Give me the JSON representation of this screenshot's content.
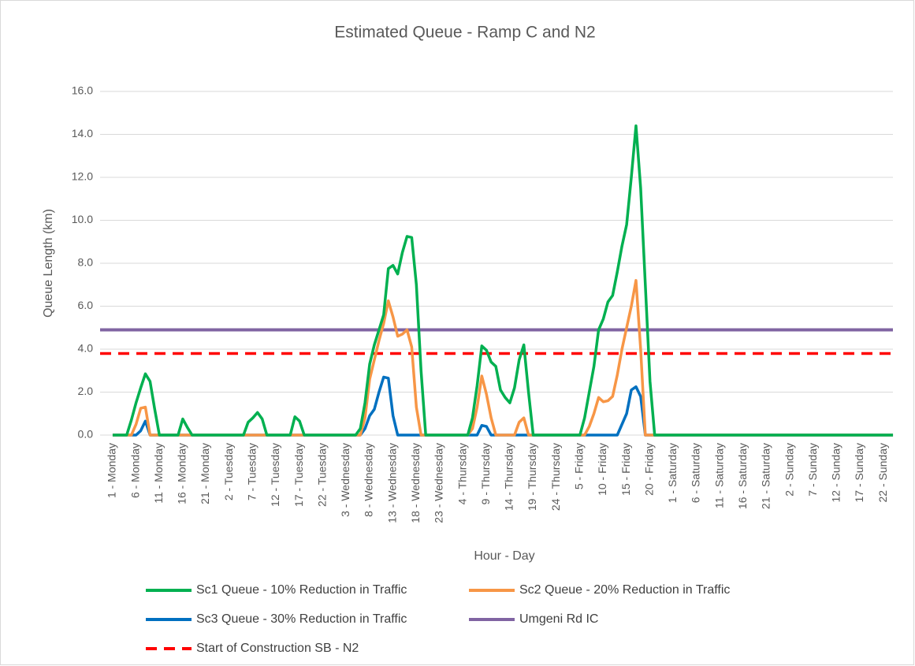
{
  "chart_data": {
    "type": "line",
    "title": "Estimated Queue - Ramp C and N2",
    "x_label": "Hour - Day",
    "y_label": "Queue Length (km)",
    "ylim": [
      0,
      16
    ],
    "yticks": [
      {
        "value": 0,
        "label": "0.0"
      },
      {
        "value": 2,
        "label": "2.0"
      },
      {
        "value": 4,
        "label": "4.0"
      },
      {
        "value": 6,
        "label": "6.0"
      },
      {
        "value": 8,
        "label": "8.0"
      },
      {
        "value": 10,
        "label": "10.0"
      },
      {
        "value": 12,
        "label": "12.0"
      },
      {
        "value": 14,
        "label": "14.0"
      },
      {
        "value": 16,
        "label": "16.0"
      }
    ],
    "grid": true,
    "legend": "bottom",
    "categories": [
      "1 - Monday",
      null,
      null,
      null,
      null,
      "6 - Monday",
      null,
      null,
      null,
      null,
      "11 - Monday",
      null,
      null,
      null,
      null,
      "16 - Monday",
      null,
      null,
      null,
      null,
      "21 - Monday",
      null,
      null,
      null,
      null,
      "2 - Tuesday",
      null,
      null,
      null,
      null,
      "7 - Tuesday",
      null,
      null,
      null,
      null,
      "12 - Tuesday",
      null,
      null,
      null,
      null,
      "17 - Tuesday",
      null,
      null,
      null,
      null,
      "22 - Tuesday",
      null,
      null,
      null,
      null,
      "3 - Wednesday",
      null,
      null,
      null,
      null,
      "8 - Wednesday",
      null,
      null,
      null,
      null,
      "13 - Wednesday",
      null,
      null,
      null,
      null,
      "18 - Wednesday",
      null,
      null,
      null,
      null,
      "23 - Wednesday",
      null,
      null,
      null,
      null,
      "4 - Thursday",
      null,
      null,
      null,
      null,
      "9 - Thursday",
      null,
      null,
      null,
      null,
      "14 - Thursday",
      null,
      null,
      null,
      null,
      "19 - Thursday",
      null,
      null,
      null,
      null,
      "24 - Thursday",
      null,
      null,
      null,
      null,
      "5 - Friday",
      null,
      null,
      null,
      null,
      "10 - Friday",
      null,
      null,
      null,
      null,
      "15 - Friday",
      null,
      null,
      null,
      null,
      "20 - Friday",
      null,
      null,
      null,
      null,
      "1 - Saturday",
      null,
      null,
      null,
      null,
      "6 - Saturday",
      null,
      null,
      null,
      null,
      "11 - Saturday",
      null,
      null,
      null,
      null,
      "16 - Saturday",
      null,
      null,
      null,
      null,
      "21 - Saturday",
      null,
      null,
      null,
      null,
      "2 - Sunday",
      null,
      null,
      null,
      null,
      "7 - Sunday",
      null,
      null,
      null,
      null,
      "12 - Sunday",
      null,
      null,
      null,
      null,
      "17 - Sunday",
      null,
      null,
      null,
      null,
      "22 - Sunday",
      null,
      null
    ],
    "series": [
      {
        "name": "Sc1 Queue - 10% Reduction in Traffic",
        "color": "#00b050",
        "values": [
          0,
          0,
          0,
          0,
          0.7,
          1.5,
          2.2,
          2.85,
          2.5,
          1.2,
          0,
          0,
          0,
          0,
          0,
          0.75,
          0.35,
          0,
          0,
          0,
          0,
          0,
          0,
          0,
          0,
          0,
          0,
          0,
          0,
          0.6,
          0.8,
          1.05,
          0.75,
          0,
          0,
          0,
          0,
          0,
          0,
          0.85,
          0.65,
          0,
          0,
          0,
          0,
          0,
          0,
          0,
          0,
          0,
          0,
          0,
          0,
          0.3,
          1.5,
          3.3,
          4.2,
          4.9,
          5.6,
          7.75,
          7.9,
          7.5,
          8.5,
          9.25,
          9.2,
          7.0,
          3.0,
          0,
          0,
          0,
          0,
          0,
          0,
          0,
          0,
          0,
          0,
          0.8,
          2.3,
          4.15,
          3.95,
          3.4,
          3.2,
          2.1,
          1.75,
          1.5,
          2.2,
          3.5,
          4.2,
          2.0,
          0,
          0,
          0,
          0,
          0,
          0,
          0,
          0,
          0,
          0,
          0,
          0.8,
          2.0,
          3.2,
          4.9,
          5.4,
          6.2,
          6.5,
          7.6,
          8.8,
          9.8,
          12.0,
          14.4,
          11.5,
          7.0,
          2.5,
          0,
          0,
          0,
          0,
          0,
          0,
          0,
          0,
          0,
          0,
          0,
          0,
          0,
          0,
          0,
          0,
          0,
          0,
          0,
          0,
          0,
          0,
          0,
          0,
          0,
          0,
          0,
          0,
          0,
          0,
          0,
          0,
          0,
          0,
          0,
          0,
          0,
          0,
          0,
          0,
          0,
          0,
          0,
          0,
          0,
          0,
          0,
          0,
          0,
          0,
          0,
          0
        ]
      },
      {
        "name": "Sc2 Queue - 20% Reduction in Traffic",
        "color": "#f79646",
        "values": [
          0,
          0,
          0,
          0,
          0,
          0.5,
          1.25,
          1.3,
          0,
          0,
          0,
          0,
          0,
          0,
          0,
          0,
          0,
          0,
          0,
          0,
          0,
          0,
          0,
          0,
          0,
          0,
          0,
          0,
          0,
          0,
          0,
          0,
          0,
          0,
          0,
          0,
          0,
          0,
          0,
          0,
          0,
          0,
          0,
          0,
          0,
          0,
          0,
          0,
          0,
          0,
          0,
          0,
          0,
          0,
          0.8,
          2.6,
          3.5,
          4.4,
          5.2,
          6.25,
          5.5,
          4.6,
          4.7,
          4.9,
          4.1,
          1.3,
          0,
          0,
          0,
          0,
          0,
          0,
          0,
          0,
          0,
          0,
          0,
          0.3,
          1.3,
          2.75,
          1.9,
          0.8,
          0,
          0,
          0,
          0,
          0,
          0.6,
          0.8,
          0,
          0,
          0,
          0,
          0,
          0,
          0,
          0,
          0,
          0,
          0,
          0,
          0,
          0.4,
          1.0,
          1.75,
          1.55,
          1.6,
          1.8,
          2.8,
          4.0,
          5.0,
          6.0,
          7.2,
          4.0,
          0,
          0,
          0,
          0,
          0,
          0,
          0,
          0,
          0,
          0,
          0,
          0,
          0,
          0,
          0,
          0,
          0,
          0,
          0,
          0,
          0,
          0,
          0,
          0,
          0,
          0,
          0,
          0,
          0,
          0,
          0,
          0,
          0,
          0,
          0,
          0,
          0,
          0,
          0,
          0,
          0,
          0,
          0,
          0,
          0,
          0,
          0,
          0,
          0,
          0,
          0,
          0,
          0,
          0
        ]
      },
      {
        "name": "Sc3 Queue - 30% Reduction in Traffic",
        "color": "#0070c0",
        "values": [
          0,
          0,
          0,
          0,
          0,
          0,
          0.2,
          0.65,
          0,
          0,
          0,
          0,
          0,
          0,
          0,
          0,
          0,
          0,
          0,
          0,
          0,
          0,
          0,
          0,
          0,
          0,
          0,
          0,
          0,
          0,
          0,
          0,
          0,
          0,
          0,
          0,
          0,
          0,
          0,
          0,
          0,
          0,
          0,
          0,
          0,
          0,
          0,
          0,
          0,
          0,
          0,
          0,
          0,
          0,
          0.3,
          0.9,
          1.2,
          2.0,
          2.7,
          2.65,
          0.9,
          0,
          0,
          0,
          0,
          0,
          0,
          0,
          0,
          0,
          0,
          0,
          0,
          0,
          0,
          0,
          0,
          0,
          0,
          0.45,
          0.4,
          0,
          0,
          0,
          0,
          0,
          0,
          0,
          0,
          0,
          0,
          0,
          0,
          0,
          0,
          0,
          0,
          0,
          0,
          0,
          0,
          0,
          0,
          0,
          0,
          0,
          0,
          0,
          0,
          0.5,
          1.0,
          2.1,
          2.25,
          1.8,
          0,
          0,
          0,
          0,
          0,
          0,
          0,
          0,
          0,
          0,
          0,
          0,
          0,
          0,
          0,
          0,
          0,
          0,
          0,
          0,
          0,
          0,
          0,
          0,
          0,
          0,
          0,
          0,
          0,
          0,
          0,
          0,
          0,
          0,
          0,
          0,
          0,
          0,
          0,
          0,
          0,
          0,
          0,
          0,
          0,
          0,
          0,
          0,
          0,
          0,
          0,
          0,
          0,
          0
        ]
      }
    ],
    "reference_lines": [
      {
        "name": "Umgeni Rd IC",
        "color": "#8064a2",
        "value": 4.9,
        "dashed": false
      },
      {
        "name": "Start of Construction SB - N2",
        "color": "#ff0000",
        "value": 3.8,
        "dashed": true
      }
    ]
  }
}
